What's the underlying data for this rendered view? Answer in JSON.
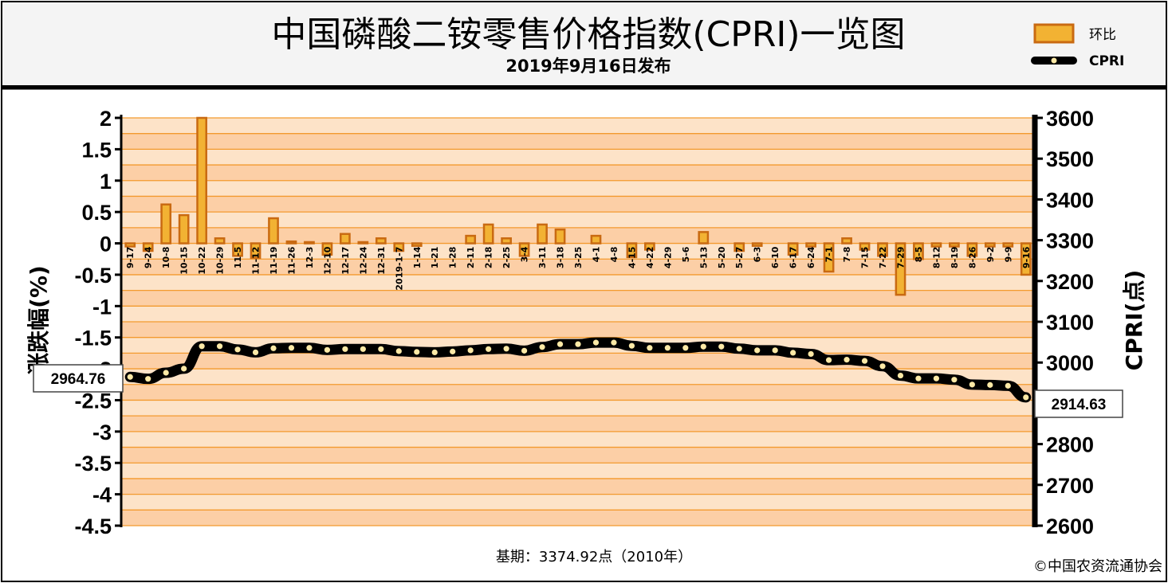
{
  "header": {
    "title": "中国磷酸二铵零售价格指数(CPRI)一览图",
    "subtitle": "2019年9月16日发布"
  },
  "legend": {
    "bar_label": "环比",
    "line_label": "CPRI"
  },
  "footer": {
    "base_period": "基期：3374.92点（2010年）",
    "copyright": "©中国农资流通协会"
  },
  "colors": {
    "band_light": "#FDE3C8",
    "band_dark": "#FCCFA6",
    "grid": "#F39A2E",
    "bar_fill": "#F2B233",
    "bar_edge": "#C96A12",
    "line": "#000000",
    "marker": "#FCE9A6"
  },
  "chart_data": {
    "type": "bar+line",
    "categories": [
      "9-17",
      "9-24",
      "10-8",
      "10-15",
      "10-22",
      "10-29",
      "11-5",
      "11-12",
      "11-19",
      "11-26",
      "12-3",
      "12-10",
      "12-17",
      "12-24",
      "12-31",
      "2019-1-7",
      "1-14",
      "1-21",
      "1-28",
      "2-11",
      "2-18",
      "2-25",
      "3-4",
      "3-11",
      "3-18",
      "3-25",
      "4-1",
      "4-8",
      "4-15",
      "4-22",
      "4-29",
      "5-6",
      "5-13",
      "5-20",
      "5-27",
      "6-3",
      "6-10",
      "6-17",
      "6-24",
      "7-1",
      "7-8",
      "7-15",
      "7-22",
      "7-29",
      "8-5",
      "8-12",
      "8-19",
      "8-26",
      "9-2",
      "9-9",
      "9-16"
    ],
    "series": [
      {
        "name": "环比",
        "axis": "left",
        "type": "bar",
        "values": [
          -0.05,
          -0.12,
          0.62,
          0.45,
          2.0,
          0.08,
          -0.2,
          -0.23,
          0.4,
          0.03,
          0.02,
          -0.18,
          0.15,
          0.02,
          0.08,
          -0.12,
          -0.04,
          0.0,
          0.0,
          0.12,
          0.3,
          0.08,
          -0.2,
          0.3,
          0.22,
          0.0,
          0.12,
          0.0,
          -0.22,
          -0.1,
          0.0,
          0.0,
          0.18,
          0.0,
          -0.12,
          -0.04,
          0.0,
          -0.18,
          -0.05,
          -0.45,
          0.08,
          -0.1,
          -0.2,
          -0.82,
          -0.25,
          -0.05,
          -0.05,
          -0.2,
          -0.05,
          -0.05,
          -0.5
        ]
      },
      {
        "name": "CPRI",
        "axis": "right",
        "type": "line",
        "values": [
          2964.76,
          2960,
          2975,
          2985,
          3040,
          3040,
          3032,
          3025,
          3035,
          3036,
          3036,
          3031,
          3033,
          3033,
          3033,
          3028,
          3026,
          3025,
          3027,
          3030,
          3033,
          3034,
          3029,
          3038,
          3045,
          3045,
          3049,
          3049,
          3041,
          3036,
          3036,
          3036,
          3039,
          3039,
          3034,
          3030,
          3030,
          3024,
          3021,
          3006,
          3007,
          3004,
          2991,
          2968,
          2961,
          2961,
          2958,
          2946,
          2945,
          2943,
          2914.63
        ]
      }
    ],
    "y_left": {
      "label": "涨跌幅(%)",
      "min": -4.5,
      "max": 2,
      "ticks": [
        "2",
        "1.5",
        "1",
        "0.5",
        "0",
        "-0.5",
        "-1",
        "-1.5",
        "-2",
        "-2.5",
        "-3",
        "-3.5",
        "-4",
        "-4.5"
      ]
    },
    "y_right": {
      "label": "CPRI(点)",
      "min": 2600,
      "max": 3600,
      "ticks": [
        "3600",
        "3500",
        "3400",
        "3300",
        "3200",
        "3100",
        "3000",
        "2900",
        "2800",
        "2700",
        "2600"
      ]
    },
    "callouts": {
      "first": "2964.76",
      "last": "2914.63"
    },
    "grid": true,
    "legend_position": "top-right"
  }
}
